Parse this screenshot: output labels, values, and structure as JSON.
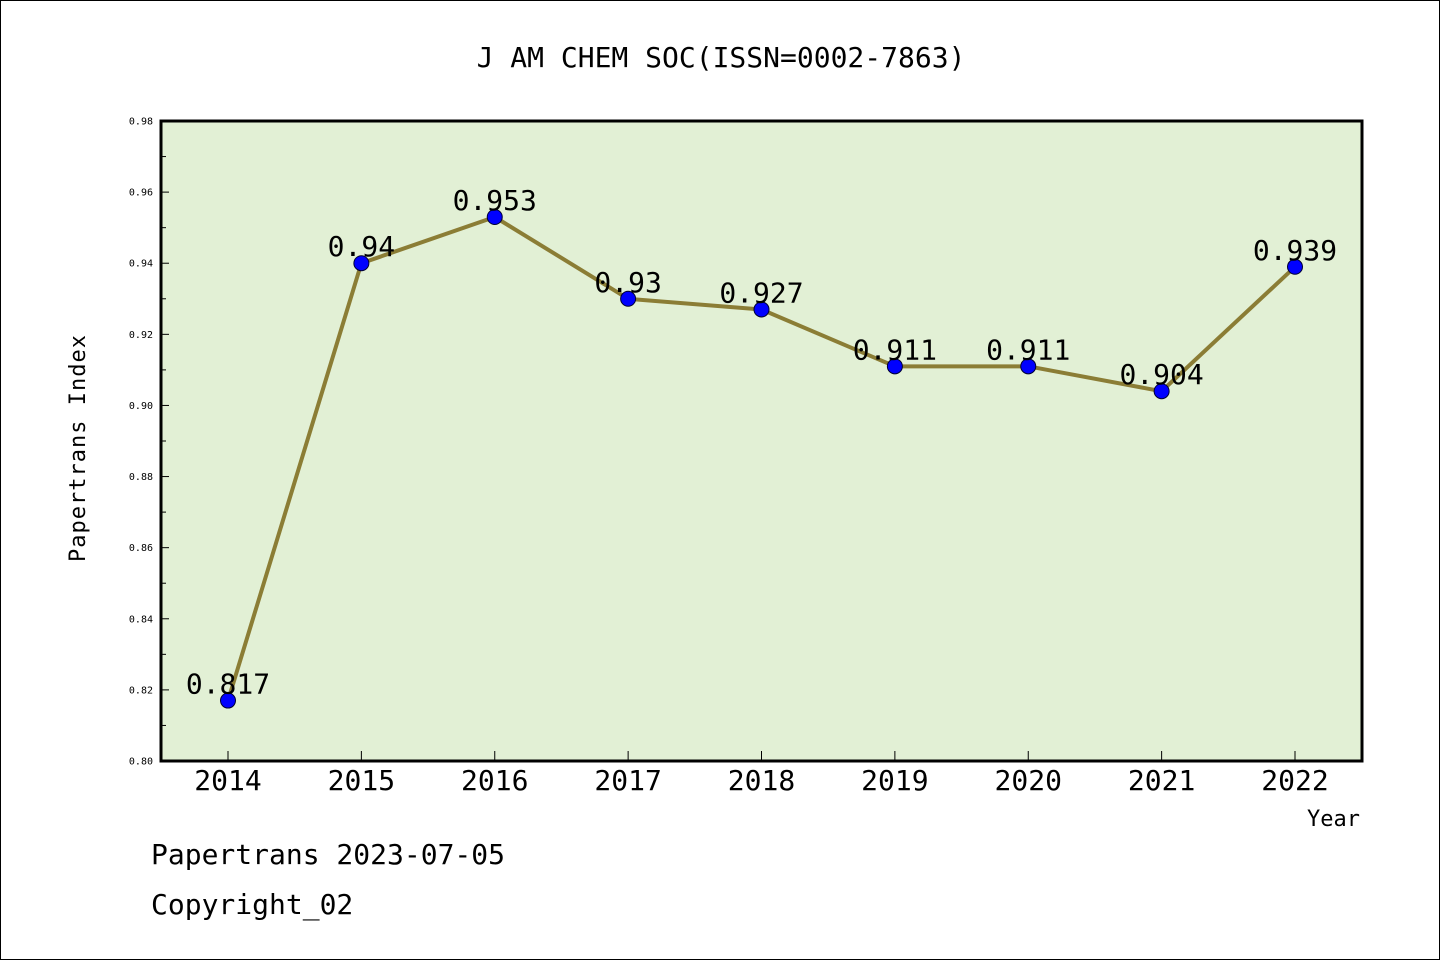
{
  "chart_data": {
    "type": "line",
    "title": "J AM CHEM SOC(ISSN=0002-7863)",
    "xlabel": "Year",
    "ylabel": "Papertrans Index",
    "categories": [
      "2014",
      "2015",
      "2016",
      "2017",
      "2018",
      "2019",
      "2020",
      "2021",
      "2022"
    ],
    "series": [
      {
        "values": [
          0.817,
          0.94,
          0.953,
          0.93,
          0.927,
          0.911,
          0.911,
          0.904,
          0.939
        ]
      }
    ],
    "data_labels": [
      "0.817",
      "0.94",
      "0.953",
      "0.93",
      "0.927",
      "0.911",
      "0.911",
      "0.904",
      "0.939"
    ],
    "ylim": [
      0.8,
      0.98
    ],
    "yticks": [
      "0.80",
      "0.82",
      "0.84",
      "0.86",
      "0.88",
      "0.90",
      "0.92",
      "0.94",
      "0.96",
      "0.98"
    ],
    "grid": false,
    "colors": {
      "plot_background": "#e2f0d5",
      "line": "#8b7d35",
      "marker": "#0000ff"
    }
  },
  "footer": {
    "line1": "Papertrans 2023-07-05",
    "line2": "Copyright_02"
  }
}
